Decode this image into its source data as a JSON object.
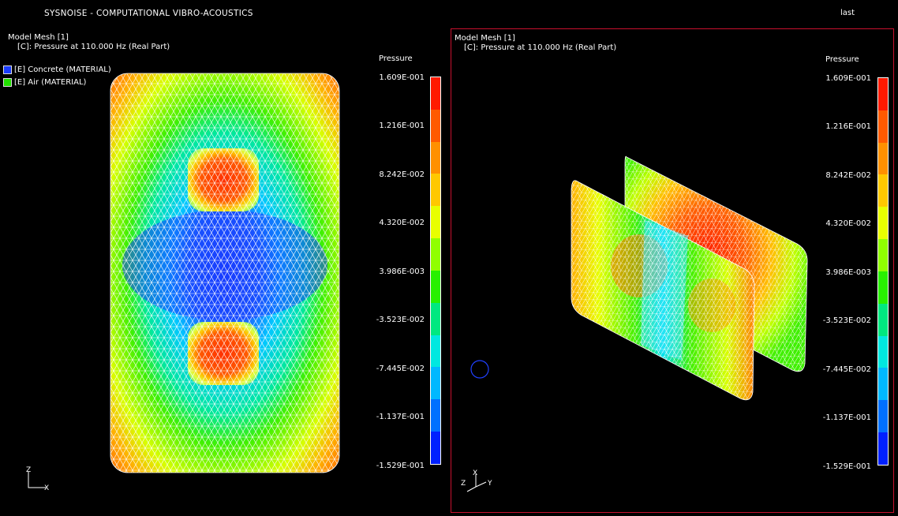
{
  "app_title": "SYSNOISE - COMPUTATIONAL VIBRO-ACOUSTICS",
  "status": "last",
  "views": [
    {
      "mesh_title": "Model Mesh [1]",
      "result_label": "[C]: Pressure at 110.000 Hz (Real Part)",
      "legend": [
        {
          "label": "[E] Concrete (MATERIAL)",
          "color": "#1a3cff"
        },
        {
          "label": "[E] Air (MATERIAL)",
          "color": "#22e000"
        }
      ],
      "axes": {
        "vertical": "Z",
        "horizontal": "X"
      }
    },
    {
      "mesh_title": "Model Mesh [1]",
      "result_label": "[C]: Pressure at 110.000 Hz (Real Part)",
      "axes": {
        "vertical": "X",
        "left": "Z",
        "right": "Y"
      }
    }
  ],
  "colorbar": {
    "title": "Pressure",
    "ticks": [
      "1.609E-001",
      "1.216E-001",
      "8.242E-002",
      "4.320E-002",
      "3.986E-003",
      "-3.523E-002",
      "-7.445E-002",
      "-1.137E-001",
      "-1.529E-001"
    ],
    "colors": [
      "#ff1a00",
      "#ff5a00",
      "#ff9000",
      "#ffc800",
      "#e8ff00",
      "#90ff00",
      "#28f000",
      "#00e880",
      "#00e8e0",
      "#00b8ff",
      "#0070ff",
      "#0020ff"
    ]
  }
}
